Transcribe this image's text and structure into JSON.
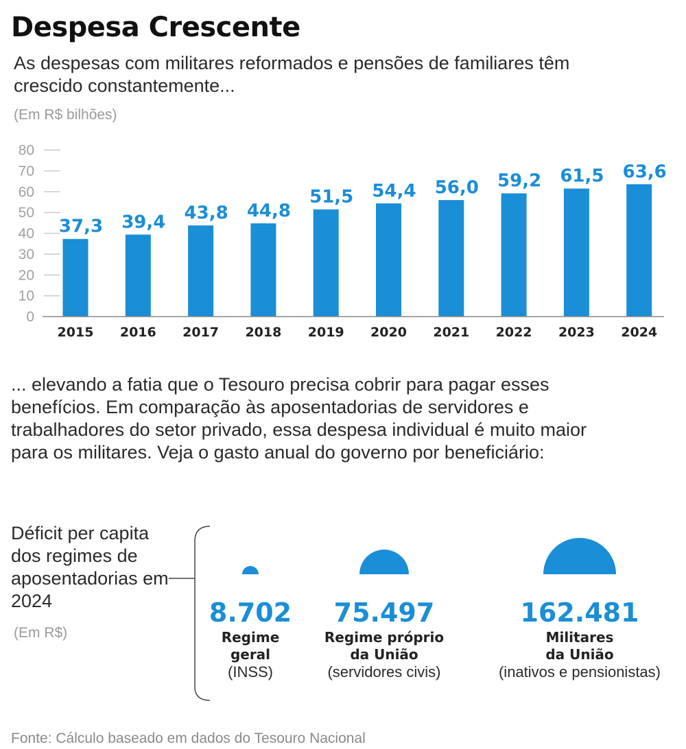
{
  "header": {
    "title": "Despesa Crescente",
    "subtitle": "As despesas com militares reformados e pensões de familiares têm crescido constantemente...",
    "unit": "(Em R$ bilhões)"
  },
  "chart_data": {
    "type": "bar",
    "categories": [
      "2015",
      "2016",
      "2017",
      "2018",
      "2019",
      "2020",
      "2021",
      "2022",
      "2023",
      "2024"
    ],
    "values": [
      37.3,
      39.4,
      43.8,
      44.8,
      51.5,
      54.4,
      56.0,
      59.2,
      61.5,
      63.6
    ],
    "value_labels": [
      "37,3",
      "39,4",
      "43,8",
      "44,8",
      "51,5",
      "54,4",
      "56,0",
      "59,2",
      "61,5",
      "63,6"
    ],
    "ylim": [
      0,
      80
    ],
    "yticks": [
      0,
      10,
      20,
      30,
      40,
      50,
      60,
      70,
      80
    ],
    "ylabel": "(Em R$ bilhões)",
    "xlabel": "",
    "grid": false,
    "bar_color": "#1a8ed6"
  },
  "body_text": "... elevando a fatia que o Tesouro precisa cobrir para pagar esses benefícios. Em comparação às aposentadorias de servidores e trabalhadores do setor privado, essa despesa individual é muito maior para os militares. Veja o gasto anual do governo por beneficiário:",
  "per_capita": {
    "label": "Déficit per capita dos regimes de aposentadorias em 2024",
    "unit": "(Em R$)",
    "items": [
      {
        "value": 8702,
        "value_label": "8.702",
        "name": "Regime\ngeral",
        "desc": "(INSS)"
      },
      {
        "value": 75497,
        "value_label": "75.497",
        "name": "Regime próprio\nda União",
        "desc": "(servidores civis)"
      },
      {
        "value": 162481,
        "value_label": "162.481",
        "name": "Militares\nda União",
        "desc": "(inativos e pensionistas)"
      }
    ],
    "color": "#1a8ed6"
  },
  "footer": {
    "source": "Fonte: Cálculo baseado em dados do Tesouro Nacional"
  }
}
